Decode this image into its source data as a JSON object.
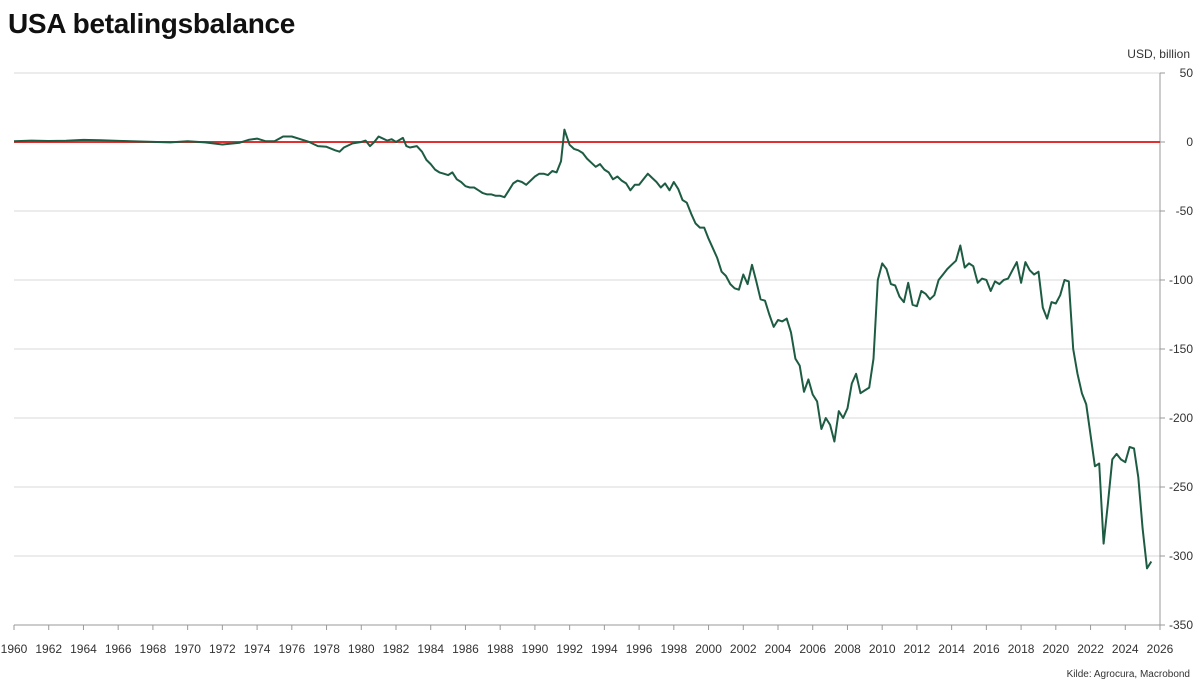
{
  "chart_data": {
    "type": "line",
    "title": "USA betalingsbalance",
    "unit_label": "USD, billion",
    "source": "Kilde: Agrocura, Macrobond",
    "xlim": [
      1960,
      2026
    ],
    "ylim": [
      -350,
      50
    ],
    "x_ticks": [
      1960,
      1962,
      1964,
      1966,
      1968,
      1970,
      1972,
      1974,
      1976,
      1978,
      1980,
      1982,
      1984,
      1986,
      1988,
      1990,
      1992,
      1994,
      1996,
      1998,
      2000,
      2002,
      2004,
      2006,
      2008,
      2010,
      2012,
      2014,
      2016,
      2018,
      2020,
      2022,
      2024,
      2026
    ],
    "y_ticks": [
      50,
      0,
      -50,
      -100,
      -150,
      -200,
      -250,
      -300,
      -350
    ],
    "grid": "horizontal",
    "colors": {
      "line": "#1d5c43",
      "zero_line": "#e03030",
      "grid": "#d9d9d9",
      "axis": "#999999"
    },
    "series": [
      {
        "points": [
          [
            1960,
            0.5
          ],
          [
            1961,
            1
          ],
          [
            1962,
            0.7
          ],
          [
            1963,
            0.9
          ],
          [
            1964,
            1.5
          ],
          [
            1965,
            1.2
          ],
          [
            1966,
            0.8
          ],
          [
            1967,
            0.4
          ],
          [
            1968,
            0.1
          ],
          [
            1969,
            -0.3
          ],
          [
            1970,
            0.5
          ],
          [
            1971,
            -0.3
          ],
          [
            1972,
            -1.8
          ],
          [
            1973,
            -0.5
          ],
          [
            1973.5,
            1.5
          ],
          [
            1974,
            2.5
          ],
          [
            1974.5,
            0.5
          ],
          [
            1975,
            0.5
          ],
          [
            1975.5,
            4
          ],
          [
            1976,
            4
          ],
          [
            1976.5,
            2
          ],
          [
            1977,
            0
          ],
          [
            1977.5,
            -3
          ],
          [
            1978,
            -3.5
          ],
          [
            1978.5,
            -6
          ],
          [
            1978.75,
            -7
          ],
          [
            1979,
            -4
          ],
          [
            1979.5,
            -1
          ],
          [
            1980,
            0
          ],
          [
            1980.25,
            1
          ],
          [
            1980.5,
            -3
          ],
          [
            1980.75,
            0
          ],
          [
            1981,
            4
          ],
          [
            1981.5,
            1
          ],
          [
            1981.75,
            2
          ],
          [
            1982,
            0
          ],
          [
            1982.4,
            3
          ],
          [
            1982.6,
            -3
          ],
          [
            1982.8,
            -4
          ],
          [
            1983.2,
            -3
          ],
          [
            1983.5,
            -7
          ],
          [
            1983.75,
            -13
          ],
          [
            1984,
            -16
          ],
          [
            1984.25,
            -20
          ],
          [
            1984.5,
            -22
          ],
          [
            1984.75,
            -23
          ],
          [
            1985,
            -24
          ],
          [
            1985.25,
            -22
          ],
          [
            1985.5,
            -27
          ],
          [
            1985.75,
            -29
          ],
          [
            1986,
            -32
          ],
          [
            1986.25,
            -33
          ],
          [
            1986.5,
            -33
          ],
          [
            1986.75,
            -35
          ],
          [
            1987,
            -37
          ],
          [
            1987.25,
            -38
          ],
          [
            1987.5,
            -38
          ],
          [
            1987.75,
            -39
          ],
          [
            1988,
            -39
          ],
          [
            1988.25,
            -40
          ],
          [
            1988.5,
            -35
          ],
          [
            1988.75,
            -30
          ],
          [
            1989,
            -28
          ],
          [
            1989.25,
            -29
          ],
          [
            1989.5,
            -31
          ],
          [
            1989.75,
            -28
          ],
          [
            1990,
            -25
          ],
          [
            1990.25,
            -23
          ],
          [
            1990.5,
            -23
          ],
          [
            1990.75,
            -24
          ],
          [
            1991,
            -21
          ],
          [
            1991.25,
            -22
          ],
          [
            1991.5,
            -14
          ],
          [
            1991.7,
            9
          ],
          [
            1992,
            -2
          ],
          [
            1992.25,
            -5
          ],
          [
            1992.5,
            -6
          ],
          [
            1992.75,
            -8
          ],
          [
            1993,
            -12
          ],
          [
            1993.25,
            -15
          ],
          [
            1993.5,
            -18
          ],
          [
            1993.75,
            -16
          ],
          [
            1994,
            -20
          ],
          [
            1994.25,
            -22
          ],
          [
            1994.5,
            -27
          ],
          [
            1994.75,
            -25
          ],
          [
            1995,
            -28
          ],
          [
            1995.25,
            -30
          ],
          [
            1995.5,
            -35
          ],
          [
            1995.75,
            -31
          ],
          [
            1996,
            -31
          ],
          [
            1996.25,
            -27
          ],
          [
            1996.5,
            -23
          ],
          [
            1996.75,
            -26
          ],
          [
            1997,
            -29
          ],
          [
            1997.25,
            -33
          ],
          [
            1997.5,
            -30
          ],
          [
            1997.75,
            -35
          ],
          [
            1998,
            -29
          ],
          [
            1998.25,
            -34
          ],
          [
            1998.5,
            -42
          ],
          [
            1998.75,
            -44
          ],
          [
            1999,
            -52
          ],
          [
            1999.25,
            -59
          ],
          [
            1999.5,
            -62
          ],
          [
            1999.75,
            -62
          ],
          [
            2000,
            -70
          ],
          [
            2000.25,
            -77
          ],
          [
            2000.5,
            -84
          ],
          [
            2000.75,
            -94
          ],
          [
            2001,
            -97
          ],
          [
            2001.25,
            -103
          ],
          [
            2001.5,
            -106
          ],
          [
            2001.75,
            -107
          ],
          [
            2002,
            -96
          ],
          [
            2002.25,
            -103
          ],
          [
            2002.5,
            -89
          ],
          [
            2002.75,
            -101
          ],
          [
            2003,
            -114
          ],
          [
            2003.25,
            -115
          ],
          [
            2003.5,
            -125
          ],
          [
            2003.75,
            -134
          ],
          [
            2004,
            -129
          ],
          [
            2004.25,
            -130
          ],
          [
            2004.5,
            -128
          ],
          [
            2004.75,
            -138
          ],
          [
            2005,
            -157
          ],
          [
            2005.25,
            -162
          ],
          [
            2005.5,
            -181
          ],
          [
            2005.75,
            -172
          ],
          [
            2006,
            -183
          ],
          [
            2006.25,
            -188
          ],
          [
            2006.5,
            -208
          ],
          [
            2006.75,
            -200
          ],
          [
            2007,
            -205
          ],
          [
            2007.25,
            -217
          ],
          [
            2007.5,
            -195
          ],
          [
            2007.75,
            -200
          ],
          [
            2008,
            -193
          ],
          [
            2008.25,
            -175
          ],
          [
            2008.5,
            -168
          ],
          [
            2008.75,
            -182
          ],
          [
            2009,
            -180
          ],
          [
            2009.25,
            -178
          ],
          [
            2009.5,
            -157
          ],
          [
            2009.75,
            -100
          ],
          [
            2010,
            -88
          ],
          [
            2010.25,
            -92
          ],
          [
            2010.5,
            -103
          ],
          [
            2010.75,
            -104
          ],
          [
            2011,
            -112
          ],
          [
            2011.25,
            -116
          ],
          [
            2011.5,
            -102
          ],
          [
            2011.75,
            -118
          ],
          [
            2012,
            -119
          ],
          [
            2012.25,
            -108
          ],
          [
            2012.5,
            -110
          ],
          [
            2012.75,
            -114
          ],
          [
            2013,
            -111
          ],
          [
            2013.25,
            -100
          ],
          [
            2013.5,
            -96
          ],
          [
            2013.75,
            -92
          ],
          [
            2014,
            -89
          ],
          [
            2014.25,
            -86
          ],
          [
            2014.5,
            -75
          ],
          [
            2014.75,
            -91
          ],
          [
            2015,
            -88
          ],
          [
            2015.25,
            -90
          ],
          [
            2015.5,
            -102
          ],
          [
            2015.75,
            -99
          ],
          [
            2016,
            -100
          ],
          [
            2016.25,
            -108
          ],
          [
            2016.5,
            -101
          ],
          [
            2016.75,
            -103
          ],
          [
            2017,
            -100
          ],
          [
            2017.25,
            -99
          ],
          [
            2017.5,
            -93
          ],
          [
            2017.75,
            -87
          ],
          [
            2018,
            -102
          ],
          [
            2018.25,
            -87
          ],
          [
            2018.5,
            -93
          ],
          [
            2018.75,
            -96
          ],
          [
            2019,
            -94
          ],
          [
            2019.25,
            -120
          ],
          [
            2019.5,
            -128
          ],
          [
            2019.75,
            -116
          ],
          [
            2020,
            -117
          ],
          [
            2020.25,
            -111
          ],
          [
            2020.5,
            -100
          ],
          [
            2020.75,
            -101
          ],
          [
            2021,
            -150
          ],
          [
            2021.25,
            -168
          ],
          [
            2021.5,
            -182
          ],
          [
            2021.75,
            -190
          ],
          [
            2022,
            -212
          ],
          [
            2022.25,
            -235
          ],
          [
            2022.5,
            -233
          ],
          [
            2022.75,
            -291
          ],
          [
            2023,
            -262
          ],
          [
            2023.25,
            -230
          ],
          [
            2023.5,
            -226
          ],
          [
            2023.75,
            -230
          ],
          [
            2024,
            -232
          ],
          [
            2024.25,
            -221
          ],
          [
            2024.5,
            -222
          ],
          [
            2024.75,
            -243
          ],
          [
            2025,
            -280
          ],
          [
            2025.25,
            -309
          ],
          [
            2025.5,
            -304
          ]
        ]
      }
    ]
  }
}
